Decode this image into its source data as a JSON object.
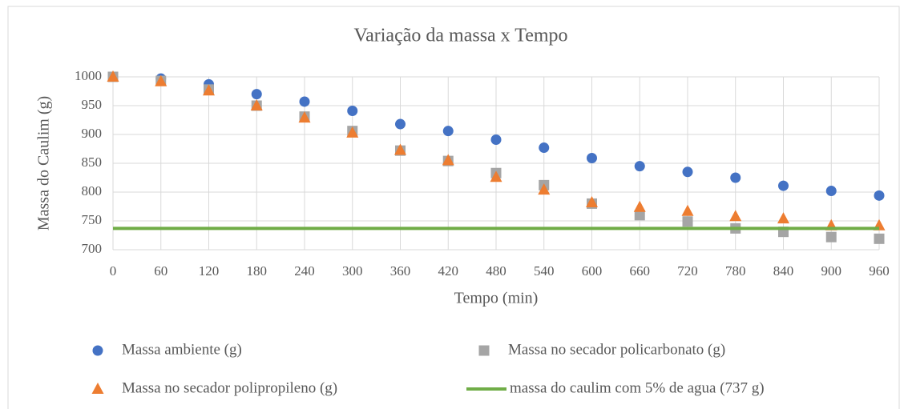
{
  "chart_data": {
    "type": "scatter",
    "title": "Variação da massa x Tempo",
    "xlabel": "Tempo (min)",
    "ylabel": "Massa do Caulim (g)",
    "x": [
      0,
      60,
      120,
      180,
      240,
      300,
      360,
      420,
      480,
      540,
      600,
      660,
      720,
      780,
      840,
      900,
      960
    ],
    "xlim": [
      0,
      960
    ],
    "xticks": [
      0,
      60,
      120,
      180,
      240,
      300,
      360,
      420,
      480,
      540,
      600,
      660,
      720,
      780,
      840,
      900,
      960
    ],
    "ylim": [
      700,
      1000
    ],
    "yticks": [
      700,
      750,
      800,
      850,
      900,
      950,
      1000
    ],
    "grid": true,
    "legend": "bottom",
    "series": [
      {
        "name": "Massa ambiente (g)",
        "color": "#4472c4",
        "marker": "circle",
        "values": [
          1000,
          997,
          987,
          970,
          957,
          941,
          918,
          906,
          891,
          877,
          859,
          845,
          835,
          825,
          811,
          802,
          794
        ]
      },
      {
        "name": "Massa no secador policarbonato (g)",
        "color": "#a5a5a5",
        "marker": "square",
        "values": [
          1000,
          993,
          978,
          950,
          931,
          906,
          872,
          854,
          833,
          812,
          780,
          760,
          749,
          737,
          731,
          722,
          719
        ]
      },
      {
        "name": "Massa no secador polipropileno (g)",
        "color": "#ed7d31",
        "marker": "triangle",
        "values": [
          1000,
          992,
          976,
          950,
          929,
          903,
          873,
          855,
          826,
          804,
          782,
          774,
          767,
          758,
          754,
          742,
          742
        ]
      },
      {
        "name": "massa do caulim com 5% de agua (737 g)",
        "color": "#70ad47",
        "marker": "line",
        "values": [
          737,
          737,
          737,
          737,
          737,
          737,
          737,
          737,
          737,
          737,
          737,
          737,
          737,
          737,
          737,
          737,
          737
        ]
      }
    ]
  }
}
